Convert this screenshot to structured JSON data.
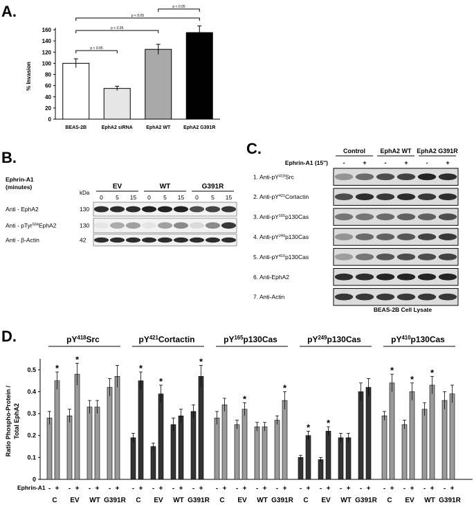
{
  "panels": {
    "a": "A.",
    "b": "B.",
    "c": "C.",
    "d": "D."
  },
  "panel_a": {
    "chart_data": {
      "type": "bar",
      "categories": [
        "BEAS-2B",
        "EphA2 siRNA",
        "EphA2 WT",
        "EphA2 G391R"
      ],
      "values": [
        100,
        55,
        125,
        155
      ],
      "errors": [
        8,
        4,
        9,
        12
      ],
      "colors": [
        "#ffffff",
        "#e6e6e6",
        "#a9a9a9",
        "#000000"
      ],
      "ylabel": "% Invasion",
      "ylim": [
        0,
        160
      ],
      "yticks": [
        "0",
        "20",
        "40",
        "60",
        "80",
        "100",
        "120",
        "140",
        "160"
      ],
      "significance": [
        {
          "from": 0,
          "to": 1,
          "label": "p < 0.05"
        },
        {
          "from": 0,
          "to": 2,
          "label": "p < 0.05"
        },
        {
          "from": 2,
          "to": 3,
          "label": "p < 0.05"
        },
        {
          "from": 0,
          "to": 3,
          "label": "p < 0.05"
        }
      ]
    }
  },
  "panel_b": {
    "stim_label_1": "Ephrin-A1",
    "stim_label_2": "(minutes)",
    "kda_label": "kDa",
    "groups": [
      "EV",
      "WT",
      "G391R"
    ],
    "timepoints": [
      "0",
      "5",
      "15",
      "0",
      "5",
      "15",
      "0",
      "5",
      "15"
    ],
    "rows": [
      {
        "label": "Anti - EphA2",
        "kda": "130"
      },
      {
        "label_pre": "Anti - pTyr",
        "label_sup": "594",
        "label_post": "EphA2",
        "kda": "130"
      },
      {
        "label": "Anti - β-Actin",
        "kda": "42"
      }
    ]
  },
  "panel_c": {
    "stim_label": "Ephrin-A1 (15'')",
    "groups": [
      "Control",
      "EphA2 WT",
      "EphA2 G391R"
    ],
    "signs": [
      "-",
      "+",
      "-",
      "+",
      "-",
      "+"
    ],
    "rows": [
      {
        "pre": "1. Anti-pY",
        "sup": "418",
        "post": "Src"
      },
      {
        "pre": "2. Anti-pY",
        "sup": "421",
        "post": "Cortactin"
      },
      {
        "pre": "3. Anti-pY",
        "sup": "165",
        "post": "p130Cas"
      },
      {
        "pre": "4. Anti-pY",
        "sup": "249",
        "post": "p130Cas"
      },
      {
        "pre": "5. Anti-pY",
        "sup": "410",
        "post": "p130Cas"
      },
      {
        "pre": "6. Anti-EphA2",
        "sup": "",
        "post": ""
      },
      {
        "pre": "7. Anti-Actin",
        "sup": "",
        "post": ""
      }
    ],
    "caption": "BEAS-2B Cell Lysate"
  },
  "panel_d": {
    "chart_data": {
      "type": "bar",
      "ylabel_1": "Ratio Phospho-Protein /",
      "ylabel_2": "Total EphA2",
      "ylim": [
        0,
        0.5
      ],
      "yticks": [
        "0",
        "0.1",
        "0.2",
        "0.3",
        "0.4",
        "0.5"
      ],
      "categories": [
        "C",
        "EV",
        "WT",
        "G391R"
      ],
      "sign_labels": [
        "-",
        "+"
      ],
      "stim_label": "Ephrin-A1",
      "groups": [
        {
          "pre": "pY",
          "sup": "418",
          "post": "Src",
          "color": "#9a9a9a",
          "values": [
            0.28,
            0.45,
            0.29,
            0.48,
            0.33,
            0.33,
            0.42,
            0.47
          ],
          "errors": [
            0.03,
            0.04,
            0.03,
            0.05,
            0.03,
            0.03,
            0.04,
            0.05
          ],
          "star": [
            false,
            true,
            false,
            true,
            false,
            false,
            false,
            false
          ]
        },
        {
          "pre": "pY",
          "sup": "421",
          "post": "Cortactin",
          "color": "#333333",
          "values": [
            0.19,
            0.45,
            0.15,
            0.39,
            0.25,
            0.29,
            0.31,
            0.47
          ],
          "errors": [
            0.02,
            0.04,
            0.015,
            0.04,
            0.03,
            0.03,
            0.03,
            0.05
          ],
          "star": [
            false,
            true,
            false,
            true,
            false,
            false,
            false,
            true
          ]
        },
        {
          "pre": "pY",
          "sup": "165",
          "post": "p130Cas",
          "color": "#9a9a9a",
          "values": [
            0.28,
            0.34,
            0.25,
            0.32,
            0.24,
            0.24,
            0.27,
            0.36
          ],
          "errors": [
            0.03,
            0.03,
            0.02,
            0.03,
            0.02,
            0.02,
            0.02,
            0.04
          ],
          "star": [
            false,
            false,
            false,
            true,
            false,
            false,
            false,
            true
          ]
        },
        {
          "pre": "pY",
          "sup": "249",
          "post": "p130Cas",
          "color": "#333333",
          "values": [
            0.1,
            0.2,
            0.09,
            0.22,
            0.19,
            0.19,
            0.4,
            0.42
          ],
          "errors": [
            0.01,
            0.02,
            0.01,
            0.02,
            0.02,
            0.02,
            0.04,
            0.04
          ],
          "star": [
            false,
            true,
            false,
            true,
            false,
            false,
            false,
            false
          ]
        },
        {
          "pre": "pY",
          "sup": "410",
          "post": "p130Cas",
          "color": "#9a9a9a",
          "values": [
            0.29,
            0.44,
            0.25,
            0.4,
            0.32,
            0.43,
            0.36,
            0.39
          ],
          "errors": [
            0.02,
            0.04,
            0.02,
            0.04,
            0.03,
            0.04,
            0.04,
            0.04
          ],
          "star": [
            false,
            true,
            false,
            true,
            false,
            true,
            false,
            false
          ]
        }
      ]
    }
  }
}
